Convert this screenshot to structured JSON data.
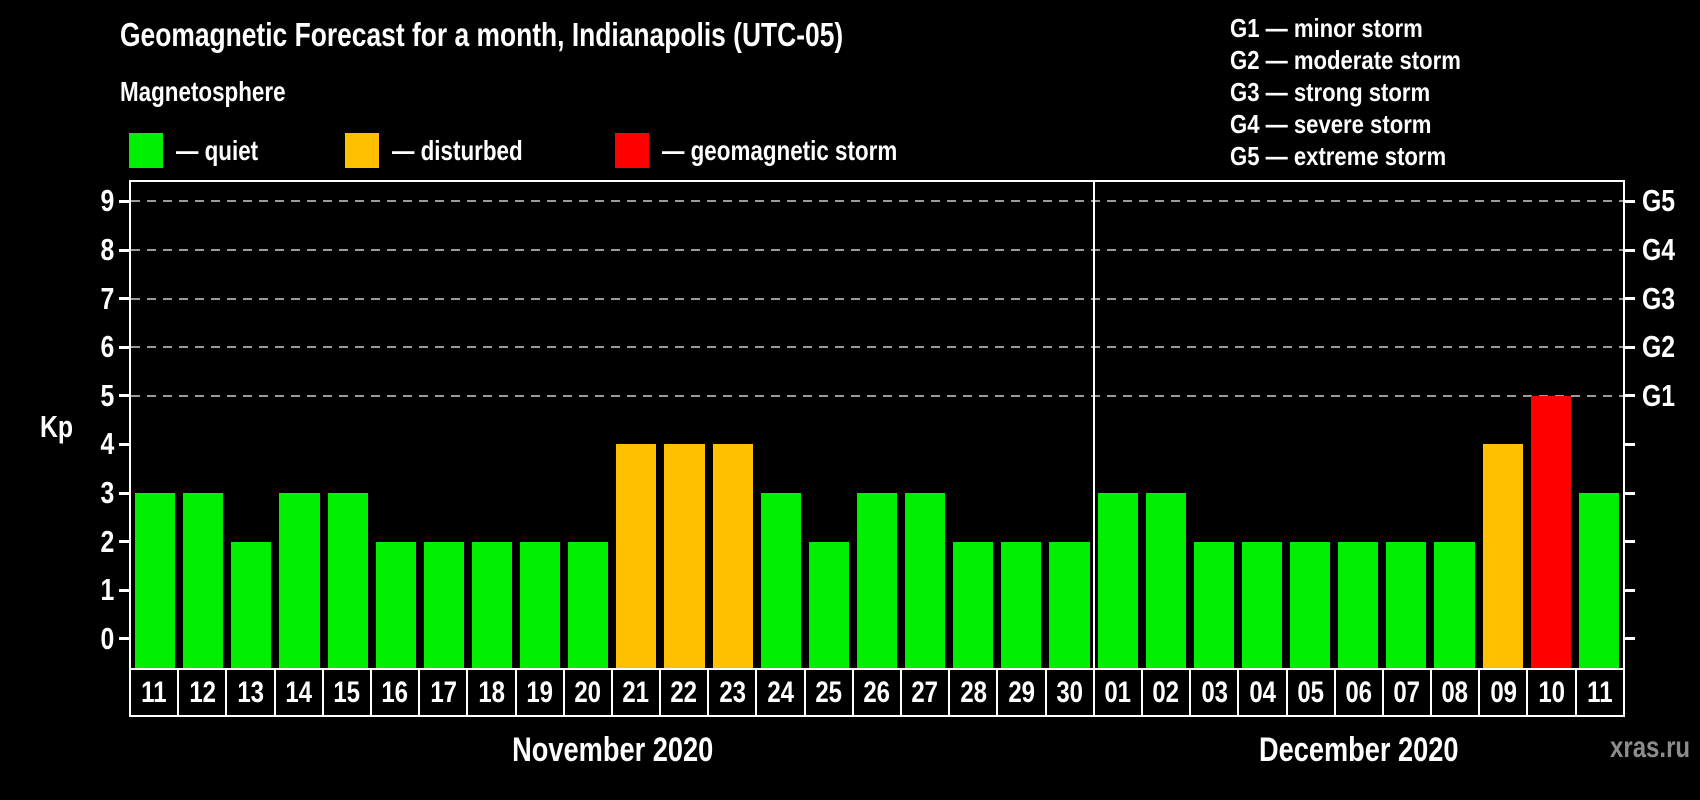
{
  "title": "Geomagnetic Forecast for a month, Indianapolis (UTC-05)",
  "subtitle": "Magnetosphere",
  "legend": {
    "items": [
      {
        "name": "quiet",
        "label": "— quiet",
        "color": "#00ee00"
      },
      {
        "name": "disturbed",
        "label": "— disturbed",
        "color": "#ffc000"
      },
      {
        "name": "storm",
        "label": "— geomagnetic storm",
        "color": "#ff0000"
      }
    ]
  },
  "g_scale_legend": [
    "G1 — minor storm",
    "G2 — moderate storm",
    "G3 — strong storm",
    "G4 — severe storm",
    "G5 — extreme storm"
  ],
  "watermark": "xras.ru",
  "chart_data": {
    "type": "bar",
    "title": "Geomagnetic Forecast for a month, Indianapolis (UTC-05)",
    "ylabel": "Kp",
    "ylim": [
      -0.6,
      9.4
    ],
    "yticks": [
      0,
      1,
      2,
      3,
      4,
      5,
      6,
      7,
      8,
      9
    ],
    "gridlines": [
      5,
      6,
      7,
      8,
      9
    ],
    "right_axis": [
      {
        "kp": 5,
        "label": "G1"
      },
      {
        "kp": 6,
        "label": "G2"
      },
      {
        "kp": 7,
        "label": "G3"
      },
      {
        "kp": 8,
        "label": "G4"
      },
      {
        "kp": 9,
        "label": "G5"
      }
    ],
    "status_colors": {
      "quiet": "#00ee00",
      "disturbed": "#ffc000",
      "storm": "#ff0000"
    },
    "months": [
      {
        "label": "November 2020",
        "days": [
          {
            "day": "11",
            "kp": 3,
            "status": "quiet"
          },
          {
            "day": "12",
            "kp": 3,
            "status": "quiet"
          },
          {
            "day": "13",
            "kp": 2,
            "status": "quiet"
          },
          {
            "day": "14",
            "kp": 3,
            "status": "quiet"
          },
          {
            "day": "15",
            "kp": 3,
            "status": "quiet"
          },
          {
            "day": "16",
            "kp": 2,
            "status": "quiet"
          },
          {
            "day": "17",
            "kp": 2,
            "status": "quiet"
          },
          {
            "day": "18",
            "kp": 2,
            "status": "quiet"
          },
          {
            "day": "19",
            "kp": 2,
            "status": "quiet"
          },
          {
            "day": "20",
            "kp": 2,
            "status": "quiet"
          },
          {
            "day": "21",
            "kp": 4,
            "status": "disturbed"
          },
          {
            "day": "22",
            "kp": 4,
            "status": "disturbed"
          },
          {
            "day": "23",
            "kp": 4,
            "status": "disturbed"
          },
          {
            "day": "24",
            "kp": 3,
            "status": "quiet"
          },
          {
            "day": "25",
            "kp": 2,
            "status": "quiet"
          },
          {
            "day": "26",
            "kp": 3,
            "status": "quiet"
          },
          {
            "day": "27",
            "kp": 3,
            "status": "quiet"
          },
          {
            "day": "28",
            "kp": 2,
            "status": "quiet"
          },
          {
            "day": "29",
            "kp": 2,
            "status": "quiet"
          },
          {
            "day": "30",
            "kp": 2,
            "status": "quiet"
          }
        ]
      },
      {
        "label": "December 2020",
        "days": [
          {
            "day": "01",
            "kp": 3,
            "status": "quiet"
          },
          {
            "day": "02",
            "kp": 3,
            "status": "quiet"
          },
          {
            "day": "03",
            "kp": 2,
            "status": "quiet"
          },
          {
            "day": "04",
            "kp": 2,
            "status": "quiet"
          },
          {
            "day": "05",
            "kp": 2,
            "status": "quiet"
          },
          {
            "day": "06",
            "kp": 2,
            "status": "quiet"
          },
          {
            "day": "07",
            "kp": 2,
            "status": "quiet"
          },
          {
            "day": "08",
            "kp": 2,
            "status": "quiet"
          },
          {
            "day": "09",
            "kp": 4,
            "status": "disturbed"
          },
          {
            "day": "10",
            "kp": 5,
            "status": "storm"
          },
          {
            "day": "11",
            "kp": 3,
            "status": "quiet"
          }
        ]
      }
    ]
  }
}
